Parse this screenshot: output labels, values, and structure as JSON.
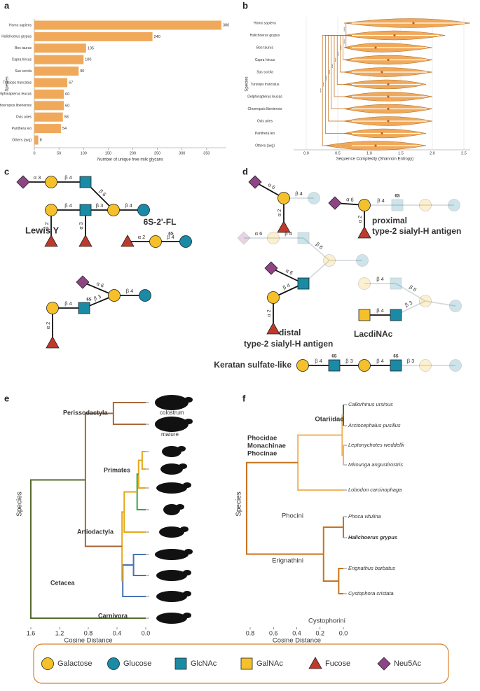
{
  "panel_labels": [
    "a",
    "b",
    "c",
    "d",
    "e",
    "f"
  ],
  "chart_data": [
    {
      "type": "bar",
      "orientation": "horizontal",
      "categories": [
        "Homo sapiens",
        "Halichoerus grypus",
        "Bos taurus",
        "Capra hircus",
        "Sus scrofa",
        "Tursiops truncatus",
        "Delphinapterus leucas",
        "Choeropsis liberiensis",
        "Ovis aries",
        "Panthera leo",
        "Others (avg)"
      ],
      "values": [
        380,
        240,
        105,
        100,
        90,
        67,
        60,
        60,
        58,
        54,
        8
      ],
      "color": "#f0a95a",
      "label_colors": [
        "#444",
        "#d9822b",
        "#444",
        "#444",
        "#444",
        "#444",
        "#444",
        "#444",
        "#444",
        "#444",
        "#444"
      ],
      "xlabel": "Number of unique free milk glycans",
      "ylabel": "Species",
      "xlim": [
        0,
        390
      ],
      "xticks": [
        0,
        50,
        100,
        150,
        200,
        250,
        300,
        350
      ]
    },
    {
      "type": "violin",
      "categories": [
        "Homo sapiens",
        "Halichoerus grypus",
        "Bos taurus",
        "Capra hircus",
        "Sus scrofa",
        "Tursiops truncatus",
        "Delphinapterus leucas",
        "Choeropsis liberiensis",
        "Ovis aries",
        "Panthera leo",
        "Others (avg)"
      ],
      "min": [
        0.6,
        0.6,
        0.6,
        0.6,
        0.6,
        0.6,
        0.6,
        0.6,
        0.6,
        0.6,
        0.3
      ],
      "median": [
        1.7,
        1.4,
        1.1,
        1.3,
        1.2,
        1.3,
        1.3,
        1.3,
        1.3,
        1.2,
        1.1
      ],
      "max": [
        2.6,
        2.2,
        2.0,
        2.0,
        2.0,
        1.9,
        2.0,
        2.0,
        2.0,
        1.9,
        1.9
      ],
      "color": "#f0a95a",
      "label_colors": [
        "#444",
        "#d9822b",
        "#444",
        "#444",
        "#444",
        "#444",
        "#444",
        "#444",
        "#444",
        "#444",
        "#444"
      ],
      "significance": [
        "****",
        "****",
        "****",
        "****",
        "****",
        "****",
        "****",
        "****",
        "****",
        "****"
      ],
      "xlabel": "Sequence Complexity (Shannon Entropy)",
      "ylabel": "Species",
      "xlim": [
        -0.2,
        2.6
      ],
      "xticks": [
        {
          "value": 0,
          "label": "0.0"
        },
        0.5,
        {
          "value": 1,
          "label": "1.0"
        },
        1.5,
        {
          "value": 2,
          "label": "2.0"
        },
        2.5
      ],
      "grid": true
    },
    {
      "type": "dendrogram",
      "merges": [
        [
          2,
          3,
          0.05
        ],
        [
          11,
          4,
          0.1
        ],
        [
          12,
          5,
          0.12
        ],
        [
          13,
          6,
          0.3
        ],
        [
          7,
          8,
          0.17
        ],
        [
          15,
          9,
          0.32
        ],
        [
          14,
          16,
          0.33
        ],
        [
          0,
          1,
          0.45
        ],
        [
          18,
          17,
          0.84
        ],
        [
          19,
          10,
          1.6
        ]
      ],
      "merge_colors": [
        "#e6a817",
        "#e6a817",
        "#3aa34a",
        "#e6a817",
        "#4a72b8",
        "#4a72b8",
        "#e6a817",
        "#a8683a",
        "#a8683a",
        "#556b2f"
      ],
      "leaf_notes": [
        "colostrum",
        "mature"
      ],
      "annotations": [
        "Perissodactyla",
        "Primates",
        "Artiodactyla",
        "Cetacea",
        "Carnivora"
      ],
      "annotation_colors": [
        "#a8683a",
        "#3aa34a",
        "#e6a817",
        "#4a72b8",
        "#556b2f"
      ],
      "xlabel": "Cosine Distance",
      "ylabel": "Species",
      "xlim": [
        1.6,
        0
      ],
      "xticks": [
        1.6,
        1.2,
        0.8,
        0.4,
        {
          "value": 0,
          "label": "0.0"
        }
      ]
    },
    {
      "type": "dendrogram",
      "leaves": [
        "Callorhinus ursinus",
        "Arctocephalus pusillus",
        "Leptonychotes weddellii",
        "Mirounga angustirostris",
        "Lobodon carcinophaga",
        "Phoca vitulina",
        "Halichoerus grypus",
        "Erignathus barbatus",
        "Cystophora cristata"
      ],
      "leaf_font_weights": [
        "normal",
        "normal",
        "normal",
        "normal",
        "normal",
        "normal",
        "bold",
        "normal",
        "normal"
      ],
      "merges": [
        [
          0,
          1,
          0
        ],
        [
          2,
          3,
          0
        ],
        [
          9,
          10,
          0.01
        ],
        [
          11,
          4,
          0.39
        ],
        [
          5,
          6,
          0
        ],
        [
          7,
          8,
          0.04
        ],
        [
          13,
          14,
          0.17
        ],
        [
          12,
          15,
          0.83
        ]
      ],
      "merge_colors": [
        "#4f6b2a",
        "#f0b45e",
        "#f0b45e",
        "#f0b45e",
        "#c8731e",
        "#c8731e",
        "#c8731e",
        "#c8731e"
      ],
      "annotations": [
        "Otariidae",
        "Phocidae",
        "Monachinae",
        "Phocinae",
        "Phocini",
        "Erignathini",
        "Cystophorini"
      ],
      "annotation_colors": [
        "#4f6b2a",
        "#222222",
        "#f0b45e",
        "#c8731e",
        "#c8731e",
        "#c8731e",
        "#c8731e"
      ],
      "xlabel": "Cosine Distance",
      "ylabel": "Species",
      "xlim": [
        0.8,
        0
      ],
      "xticks": [
        0.8,
        0.6,
        0.4,
        0.2,
        {
          "value": 0,
          "label": "0.0"
        }
      ]
    }
  ],
  "glycans_c": {
    "names": [
      "Lewis Y",
      "6S-2'-FL"
    ],
    "linkages": [
      "α 3",
      "β 4",
      "β 6",
      "β 4",
      "β 4",
      "β 3",
      "α 2",
      "α 3",
      "α 2",
      "β 4",
      "α 6",
      "β 4",
      "β 4",
      "β 3",
      "α 2"
    ],
    "sulfation": [
      "6S",
      "6S"
    ]
  },
  "glycans_d": {
    "names": [
      "proximal",
      "type-2 sialyl-H antigen",
      "distal",
      "type-2 sialyl-H antigen",
      "LacdiNAc",
      "Keratan sulfate-like"
    ],
    "linkages": [
      "α 6",
      "α 2",
      "β 4",
      "α 6",
      "α 2",
      "β 4",
      "α 6",
      "β 4",
      "β 6",
      "α 6",
      "β 4",
      "α 2",
      "β 4",
      "β 6",
      "β 4",
      "β 3",
      "β 4",
      "β 3",
      "β 4",
      "β 3"
    ],
    "sulfation": [
      "6S",
      "6S",
      "6S"
    ]
  },
  "legend": [
    "Galactose",
    "Glucose",
    "GlcNAc",
    "GalNAc",
    "Fucose",
    "Neu5Ac"
  ]
}
